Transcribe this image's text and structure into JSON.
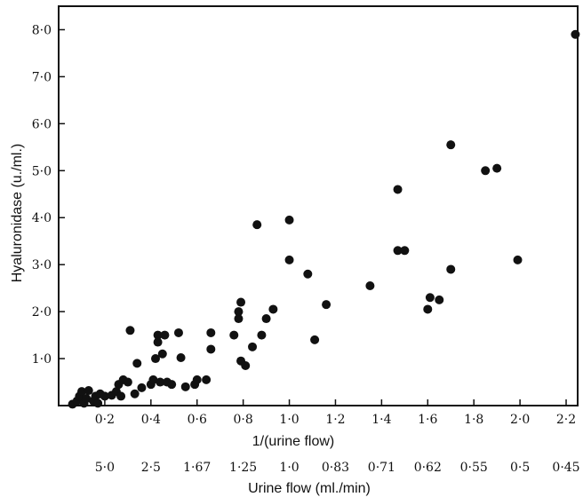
{
  "chart_data": {
    "type": "scatter",
    "xlabel": "1/(urine flow)",
    "ylabel": "Hyaluronidase (u./ml.)",
    "secondary_xlabel": "Urine flow (ml./min)",
    "xlim": [
      0.0,
      2.25
    ],
    "ylim": [
      0.0,
      8.5
    ],
    "grid": false,
    "x_ticks": [
      {
        "value": 0.2,
        "label": "0·2"
      },
      {
        "value": 0.4,
        "label": "0·4"
      },
      {
        "value": 0.6,
        "label": "0·6"
      },
      {
        "value": 0.8,
        "label": "0·8"
      },
      {
        "value": 1.0,
        "label": "1·0"
      },
      {
        "value": 1.2,
        "label": "1·2"
      },
      {
        "value": 1.4,
        "label": "1·4"
      },
      {
        "value": 1.6,
        "label": "1·6"
      },
      {
        "value": 1.8,
        "label": "1·8"
      },
      {
        "value": 2.0,
        "label": "2·0"
      },
      {
        "value": 2.2,
        "label": "2·2"
      }
    ],
    "y_ticks": [
      {
        "value": 1.0,
        "label": "1·0"
      },
      {
        "value": 2.0,
        "label": "2·0"
      },
      {
        "value": 3.0,
        "label": "3·0"
      },
      {
        "value": 4.0,
        "label": "4·0"
      },
      {
        "value": 5.0,
        "label": "5·0"
      },
      {
        "value": 6.0,
        "label": "6·0"
      },
      {
        "value": 7.0,
        "label": "7·0"
      },
      {
        "value": 8.0,
        "label": "8·0"
      }
    ],
    "secondary_x_ticks": [
      {
        "value": 0.2,
        "label": "5·0"
      },
      {
        "value": 0.4,
        "label": "2·5"
      },
      {
        "value": 0.6,
        "label": "1·67"
      },
      {
        "value": 0.8,
        "label": "1·25"
      },
      {
        "value": 1.0,
        "label": "1·0"
      },
      {
        "value": 1.2,
        "label": "0·83"
      },
      {
        "value": 1.4,
        "label": "0·71"
      },
      {
        "value": 1.6,
        "label": "0·62"
      },
      {
        "value": 1.8,
        "label": "0·55"
      },
      {
        "value": 2.0,
        "label": "0·5"
      },
      {
        "value": 2.2,
        "label": "0·45"
      }
    ],
    "points": [
      {
        "x": 0.06,
        "y": 0.03
      },
      {
        "x": 0.08,
        "y": 0.1
      },
      {
        "x": 0.09,
        "y": 0.2
      },
      {
        "x": 0.1,
        "y": 0.3
      },
      {
        "x": 0.11,
        "y": 0.05
      },
      {
        "x": 0.12,
        "y": 0.15
      },
      {
        "x": 0.13,
        "y": 0.32
      },
      {
        "x": 0.15,
        "y": 0.1
      },
      {
        "x": 0.16,
        "y": 0.2
      },
      {
        "x": 0.17,
        "y": 0.05
      },
      {
        "x": 0.18,
        "y": 0.25
      },
      {
        "x": 0.2,
        "y": 0.2
      },
      {
        "x": 0.23,
        "y": 0.22
      },
      {
        "x": 0.25,
        "y": 0.3
      },
      {
        "x": 0.26,
        "y": 0.45
      },
      {
        "x": 0.27,
        "y": 0.2
      },
      {
        "x": 0.28,
        "y": 0.55
      },
      {
        "x": 0.3,
        "y": 0.5
      },
      {
        "x": 0.31,
        "y": 1.6
      },
      {
        "x": 0.33,
        "y": 0.25
      },
      {
        "x": 0.34,
        "y": 0.9
      },
      {
        "x": 0.36,
        "y": 0.38
      },
      {
        "x": 0.4,
        "y": 0.45
      },
      {
        "x": 0.41,
        "y": 0.55
      },
      {
        "x": 0.42,
        "y": 1.0
      },
      {
        "x": 0.43,
        "y": 1.5
      },
      {
        "x": 0.43,
        "y": 1.35
      },
      {
        "x": 0.44,
        "y": 0.5
      },
      {
        "x": 0.45,
        "y": 1.1
      },
      {
        "x": 0.46,
        "y": 1.5
      },
      {
        "x": 0.47,
        "y": 0.5
      },
      {
        "x": 0.49,
        "y": 0.45
      },
      {
        "x": 0.52,
        "y": 1.55
      },
      {
        "x": 0.53,
        "y": 1.02
      },
      {
        "x": 0.55,
        "y": 0.4
      },
      {
        "x": 0.59,
        "y": 0.45
      },
      {
        "x": 0.6,
        "y": 0.55
      },
      {
        "x": 0.64,
        "y": 0.55
      },
      {
        "x": 0.66,
        "y": 1.55
      },
      {
        "x": 0.66,
        "y": 1.2
      },
      {
        "x": 0.76,
        "y": 1.5
      },
      {
        "x": 0.78,
        "y": 1.85
      },
      {
        "x": 0.78,
        "y": 2.0
      },
      {
        "x": 0.79,
        "y": 2.2
      },
      {
        "x": 0.79,
        "y": 0.95
      },
      {
        "x": 0.81,
        "y": 0.85
      },
      {
        "x": 0.84,
        "y": 1.25
      },
      {
        "x": 0.86,
        "y": 3.85
      },
      {
        "x": 0.88,
        "y": 1.5
      },
      {
        "x": 0.9,
        "y": 1.85
      },
      {
        "x": 0.93,
        "y": 2.05
      },
      {
        "x": 1.0,
        "y": 3.95
      },
      {
        "x": 1.0,
        "y": 3.1
      },
      {
        "x": 1.08,
        "y": 2.8
      },
      {
        "x": 1.11,
        "y": 1.4
      },
      {
        "x": 1.16,
        "y": 2.15
      },
      {
        "x": 1.35,
        "y": 2.55
      },
      {
        "x": 1.47,
        "y": 4.6
      },
      {
        "x": 1.47,
        "y": 3.3
      },
      {
        "x": 1.5,
        "y": 3.3
      },
      {
        "x": 1.6,
        "y": 2.05
      },
      {
        "x": 1.61,
        "y": 2.3
      },
      {
        "x": 1.65,
        "y": 2.25
      },
      {
        "x": 1.7,
        "y": 5.55
      },
      {
        "x": 1.7,
        "y": 2.9
      },
      {
        "x": 1.85,
        "y": 5.0
      },
      {
        "x": 1.9,
        "y": 5.05
      },
      {
        "x": 1.99,
        "y": 3.1
      },
      {
        "x": 2.24,
        "y": 7.9
      }
    ]
  }
}
